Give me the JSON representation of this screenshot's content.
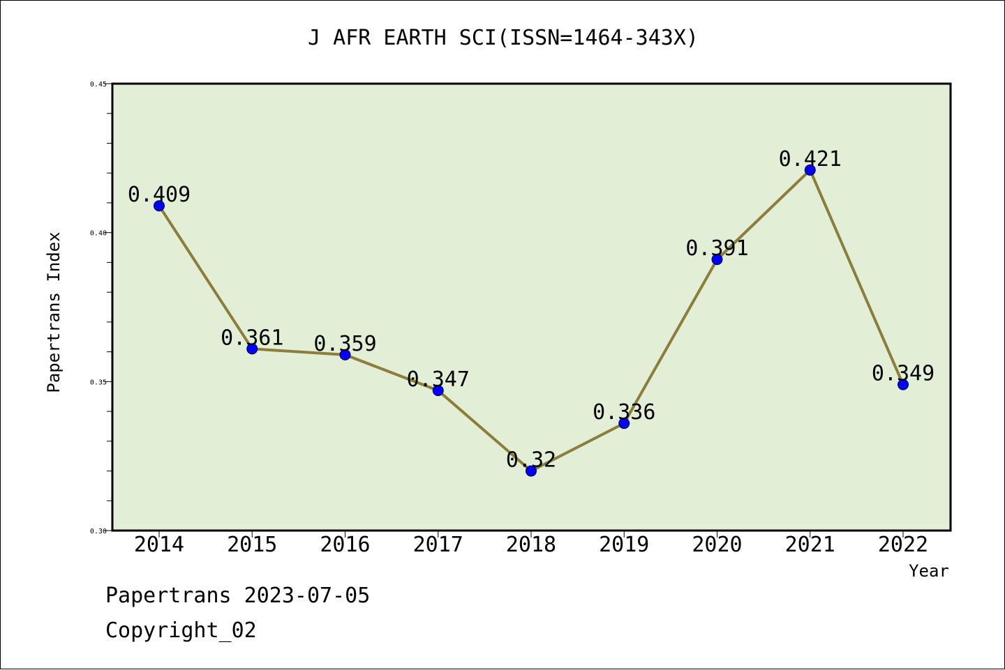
{
  "chart_data": {
    "type": "line",
    "title": "J AFR EARTH SCI(ISSN=1464-343X)",
    "xlabel": "Year",
    "ylabel": "Papertrans Index",
    "categories": [
      "2014",
      "2015",
      "2016",
      "2017",
      "2018",
      "2019",
      "2020",
      "2021",
      "2022"
    ],
    "series": [
      {
        "values": [
          0.409,
          0.361,
          0.359,
          0.347,
          0.32,
          0.336,
          0.391,
          0.421,
          0.349
        ]
      }
    ],
    "data_labels": [
      "0.409",
      "0.361",
      "0.359",
      "0.347",
      "0.32",
      "0.336",
      "0.391",
      "0.421",
      "0.349"
    ],
    "ylim": [
      0.3,
      0.45
    ],
    "yticks": [
      "0.30",
      "0.35",
      "0.40",
      "0.45"
    ],
    "grid": false,
    "colors": {
      "plot_background": "#e2efd6",
      "line": "#8b7d3a",
      "marker": "#0000ff"
    }
  },
  "footer": {
    "line1": "Papertrans 2023-07-05",
    "line2": "Copyright_02"
  }
}
